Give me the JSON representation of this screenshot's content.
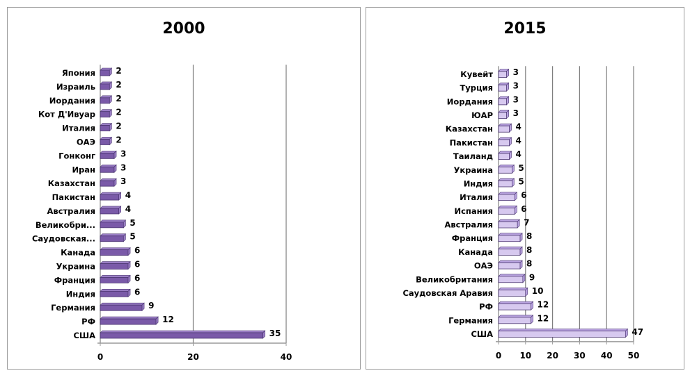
{
  "chart_data": [
    {
      "type": "bar",
      "orientation": "horizontal",
      "title": "2000",
      "categories": [
        "Япония",
        "Израиль",
        "Иордания",
        "Кот Д'Ивуар",
        "Италия",
        "ОАЭ",
        "Гонконг",
        "Иран",
        "Казахстан",
        "Пакистан",
        "Австралия",
        "Великобри...",
        "Саудовская...",
        "Канада",
        "Украина",
        "Франция",
        "Индия",
        "Германия",
        "РФ",
        "США"
      ],
      "values": [
        2,
        2,
        2,
        2,
        2,
        2,
        3,
        3,
        3,
        4,
        4,
        5,
        5,
        6,
        6,
        6,
        6,
        9,
        12,
        35
      ],
      "xlim": [
        0,
        40
      ],
      "xticks": [
        0,
        20,
        40
      ],
      "grid": true,
      "bar_color": "#7a5aa8",
      "bar_top_color": "#9b7fc6"
    },
    {
      "type": "bar",
      "orientation": "horizontal",
      "title": "2015",
      "categories": [
        "Кувейт",
        "Турция",
        "Иордания",
        "ЮАР",
        "Казахстан",
        "Пакистан",
        "Таиланд",
        "Украина",
        "Индия",
        "Италия",
        "Испания",
        "Австралия",
        "Франция",
        "Канада",
        "ОАЭ",
        "Великобритания",
        "Саудовская Аравия",
        "РФ",
        "Германия",
        "США"
      ],
      "values": [
        3,
        3,
        3,
        3,
        4,
        4,
        4,
        5,
        5,
        6,
        6,
        7,
        8,
        8,
        8,
        9,
        10,
        12,
        12,
        47
      ],
      "xlim": [
        0,
        50
      ],
      "xticks": [
        0,
        10,
        20,
        30,
        40,
        50
      ],
      "grid": true,
      "bar_color": "#d7c9ef",
      "bar_top_color": "#b9a3e0"
    }
  ]
}
